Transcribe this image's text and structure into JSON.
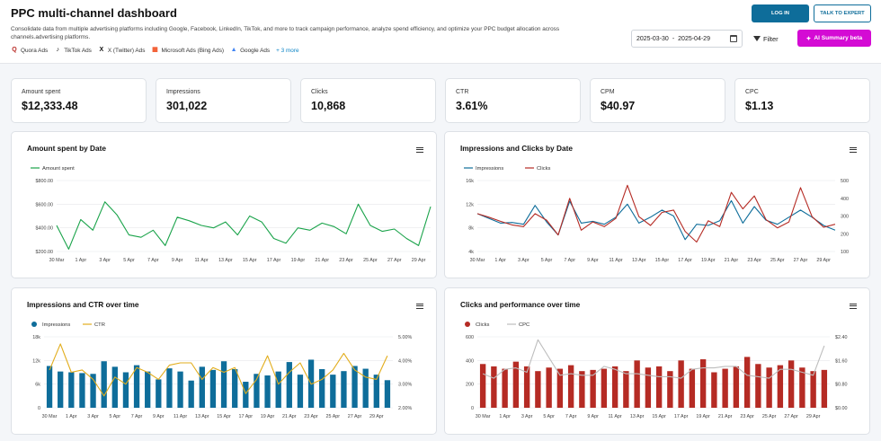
{
  "header": {
    "title": "PPC multi-channel dashboard",
    "description": "Consolidate data from multiple advertising platforms including Google, Facebook, LinkedIn, TikTok, and more to track campaign performance, analyze spend efficiency, and optimize your PPC budget allocation across channels.advertising platforms.",
    "platforms": [
      {
        "label": "Quora Ads",
        "glyph": "Q",
        "color": "#b92b27"
      },
      {
        "label": "TikTok Ads",
        "glyph": "♪",
        "color": "#111111"
      },
      {
        "label": "X (Twitter) Ads",
        "glyph": "X",
        "color": "#111111"
      },
      {
        "label": "Microsoft Ads (Bing Ads)",
        "glyph": "▦",
        "color": "#f25022"
      },
      {
        "label": "Google Ads",
        "glyph": "▲",
        "color": "#4285f4"
      }
    ],
    "more_label": "+ 3 more",
    "login_label": "LOG IN",
    "expert_label": "TALK TO EXPERT",
    "date_from": "2025-03-30",
    "date_sep": "-",
    "date_to": "2025-04-29",
    "filter_label": "Filter",
    "ai_label": "AI Summary beta"
  },
  "kpis": [
    {
      "label": "Amount spent",
      "value": "$12,333.48"
    },
    {
      "label": "Impressions",
      "value": "301,022"
    },
    {
      "label": "Clicks",
      "value": "10,868"
    },
    {
      "label": "CTR",
      "value": "3.61%"
    },
    {
      "label": "CPM",
      "value": "$40.97"
    },
    {
      "label": "CPC",
      "value": "$1.13"
    }
  ],
  "colors": {
    "green": "#1aa34a",
    "blue": "#0e6d9a",
    "red": "#b52b24",
    "gold": "#e2ad1c",
    "gray": "#bdbdbd",
    "grid": "#e6e8eb"
  },
  "chart_data": [
    {
      "type": "line",
      "title": "Amount spent by Date",
      "x_tick_labels": [
        "30 Mar",
        "1 Apr",
        "3 Apr",
        "5 Apr",
        "7 Apr",
        "9 Apr",
        "11 Apr",
        "13 Apr",
        "15 Apr",
        "17 Apr",
        "19 Apr",
        "21 Apr",
        "23 Apr",
        "25 Apr",
        "27 Apr",
        "29 Apr"
      ],
      "y_tick_labels": [
        "$200.00",
        "$400.00",
        "$600.00",
        "$800.00"
      ],
      "ylim": [
        200,
        800
      ],
      "series": [
        {
          "name": "Amount spent",
          "values": [
            420,
            220,
            470,
            380,
            620,
            510,
            340,
            320,
            380,
            250,
            490,
            460,
            420,
            400,
            450,
            340,
            500,
            450,
            310,
            270,
            400,
            380,
            440,
            410,
            350,
            600,
            420,
            370,
            390,
            310,
            250,
            580
          ]
        }
      ]
    },
    {
      "type": "line",
      "title": "Impressions and Clicks by Date",
      "x_tick_labels": [
        "30 Mar",
        "1 Apr",
        "3 Apr",
        "5 Apr",
        "7 Apr",
        "9 Apr",
        "11 Apr",
        "13 Apr",
        "15 Apr",
        "17 Apr",
        "19 Apr",
        "21 Apr",
        "23 Apr",
        "25 Apr",
        "27 Apr",
        "29 Apr"
      ],
      "y_tick_labels": [
        "4k",
        "8k",
        "12k",
        "16k"
      ],
      "y2_tick_labels": [
        "100",
        "200",
        "300",
        "400",
        "500"
      ],
      "ylim": [
        4000,
        16000
      ],
      "y2lim": [
        100,
        500
      ],
      "series": [
        {
          "name": "Impressions",
          "axis": "left",
          "values": [
            10400,
            9600,
            8800,
            8900,
            8600,
            11800,
            9000,
            6800,
            12500,
            8800,
            9100,
            8600,
            9800,
            12000,
            8800,
            9800,
            11000,
            10000,
            6000,
            8600,
            8400,
            9200,
            12600,
            8800,
            11600,
            9300,
            8600,
            9800,
            11000,
            9800,
            8400,
            7600
          ]
        },
        {
          "name": "Clicks",
          "axis": "left",
          "values": [
            10400,
            9800,
            9100,
            8500,
            8200,
            10400,
            9300,
            6800,
            13000,
            7600,
            9000,
            8200,
            9600,
            15200,
            9900,
            8400,
            10600,
            11000,
            7400,
            5600,
            9200,
            8200,
            14000,
            11200,
            13400,
            9400,
            8000,
            9000,
            14800,
            9900,
            8100,
            8600
          ]
        }
      ]
    },
    {
      "type": "bar",
      "title": "Impressions and CTR over time",
      "x_tick_labels": [
        "30 Mar",
        "1 Apr",
        "3 Apr",
        "5 Apr",
        "7 Apr",
        "9 Apr",
        "11 Apr",
        "13 Apr",
        "15 Apr",
        "17 Apr",
        "19 Apr",
        "21 Apr",
        "23 Apr",
        "25 Apr",
        "27 Apr",
        "29 Apr"
      ],
      "y_tick_labels": [
        "0",
        "6k",
        "12k",
        "18k"
      ],
      "y2_tick_labels": [
        "2.00%",
        "3.00%",
        "4.00%",
        "5.00%"
      ],
      "ylim": [
        0,
        18000
      ],
      "y2lim": [
        2,
        5
      ],
      "series": [
        {
          "name": "Impressions",
          "axis": "left",
          "values": [
            10600,
            9200,
            9000,
            8800,
            8600,
            11800,
            10400,
            9000,
            10800,
            9200,
            7200,
            10000,
            9200,
            6900,
            10400,
            9600,
            11800,
            9800,
            6600,
            8600,
            8200,
            9200,
            11600,
            8400,
            12200,
            9800,
            8400,
            9300,
            10600,
            9900,
            8400,
            7000
          ]
        },
        {
          "name": "CTR",
          "axis": "right",
          "values": [
            3.6,
            4.7,
            3.5,
            3.6,
            3.2,
            2.5,
            3.3,
            3.0,
            3.7,
            3.5,
            3.2,
            3.8,
            3.9,
            3.9,
            3.2,
            3.7,
            3.5,
            3.7,
            2.6,
            3.2,
            4.2,
            3.0,
            3.5,
            3.9,
            3.0,
            3.2,
            3.6,
            4.3,
            3.6,
            3.3,
            3.2,
            4.2
          ]
        }
      ]
    },
    {
      "type": "bar",
      "title": "Clicks and performance over time",
      "x_tick_labels": [
        "30 Mar",
        "1 Apr",
        "3 Apr",
        "5 Apr",
        "7 Apr",
        "9 Apr",
        "11 Apr",
        "13 Apr",
        "15 Apr",
        "17 Apr",
        "19 Apr",
        "21 Apr",
        "23 Apr",
        "25 Apr",
        "27 Apr",
        "29 Apr"
      ],
      "y_tick_labels": [
        "0",
        "200",
        "400",
        "600"
      ],
      "y2_tick_labels": [
        "$0.00",
        "$0.80",
        "$1.60",
        "$2.40"
      ],
      "ylim": [
        0,
        600
      ],
      "y2lim": [
        0,
        2.4
      ],
      "series": [
        {
          "name": "Clicks",
          "axis": "left",
          "values": [
            370,
            350,
            330,
            390,
            350,
            310,
            340,
            330,
            360,
            310,
            320,
            330,
            350,
            310,
            400,
            340,
            350,
            310,
            400,
            330,
            410,
            300,
            330,
            350,
            430,
            370,
            340,
            360,
            400,
            340,
            310,
            320
          ]
        },
        {
          "name": "CPC",
          "axis": "right",
          "values": [
            1.15,
            1.0,
            1.3,
            1.35,
            1.2,
            2.3,
            1.7,
            1.1,
            1.15,
            1.1,
            1.1,
            1.4,
            1.3,
            1.15,
            1.15,
            1.1,
            1.05,
            1.05,
            1.0,
            1.3,
            1.35,
            1.35,
            1.4,
            1.4,
            1.1,
            1.05,
            1.0,
            1.3,
            1.3,
            1.2,
            1.1,
            2.1
          ]
        }
      ]
    }
  ]
}
